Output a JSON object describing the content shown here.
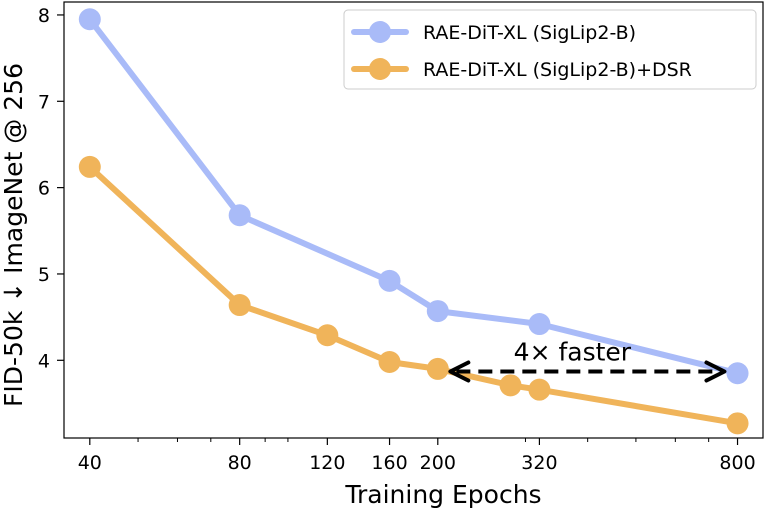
{
  "chart_data": {
    "type": "line",
    "xlabel": "Training Epochs",
    "ylabel": "FID-50k ↓ ImageNet @ 256",
    "x_scale": "log",
    "xlim": [
      35.5,
      900
    ],
    "ylim": [
      3.1,
      8.15
    ],
    "x_ticks": [
      40,
      80,
      120,
      160,
      200,
      320,
      800
    ],
    "x_tick_labels": [
      "40",
      "80",
      "120",
      "160",
      "200",
      "320",
      "800"
    ],
    "y_ticks": [
      4,
      5,
      6,
      7,
      8
    ],
    "y_tick_labels": [
      "4",
      "5",
      "6",
      "7",
      "8"
    ],
    "grid": false,
    "legend_position": "top-right",
    "series": [
      {
        "name": "RAE-DiT-XL (SigLip2-B)",
        "color": "#a9bbf8",
        "x": [
          40,
          80,
          160,
          200,
          320,
          800
        ],
        "y": [
          7.95,
          5.68,
          4.92,
          4.57,
          4.42,
          3.85
        ]
      },
      {
        "name": "RAE-DiT-XL (SigLip2-B)+DSR",
        "color": "#f0b45a",
        "x": [
          40,
          80,
          120,
          160,
          200,
          280,
          320,
          800
        ],
        "y": [
          6.24,
          4.64,
          4.29,
          3.98,
          3.9,
          3.71,
          3.66,
          3.27
        ]
      }
    ],
    "annotations": [
      {
        "text": "4× faster",
        "arrow": "double",
        "from_x": 210,
        "to_x": 760,
        "y": 3.87
      }
    ]
  }
}
